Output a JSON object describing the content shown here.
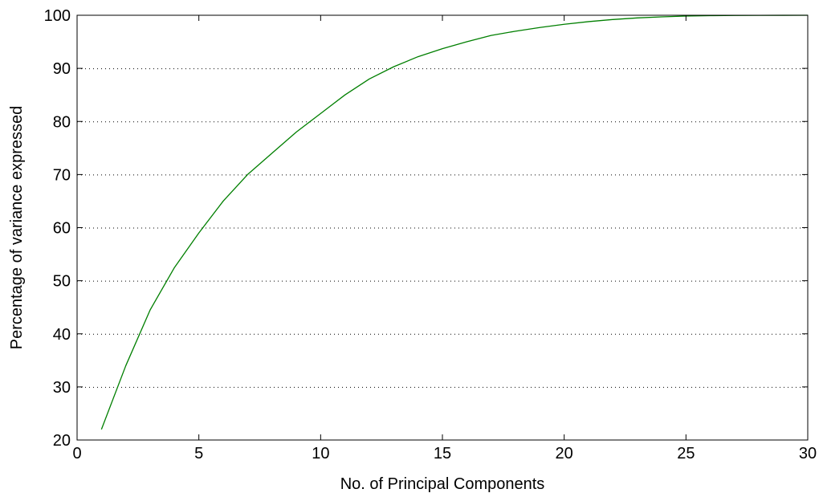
{
  "chart_data": {
    "type": "line",
    "title": "",
    "xlabel": "No. of Principal Components",
    "ylabel": "Percentage of variance expressed",
    "xlim": [
      0,
      30
    ],
    "ylim": [
      20,
      100
    ],
    "xticks": [
      0,
      5,
      10,
      15,
      20,
      25,
      30
    ],
    "yticks": [
      20,
      30,
      40,
      50,
      60,
      70,
      80,
      90,
      100
    ],
    "grid": {
      "x": false,
      "y": true,
      "style": "dotted"
    },
    "legend": "none",
    "series": [
      {
        "color": "#007f00",
        "x": [
          1,
          2,
          3,
          4,
          5,
          6,
          7,
          8,
          9,
          10,
          11,
          12,
          13,
          14,
          15,
          16,
          17,
          18,
          19,
          20,
          21,
          22,
          23,
          24,
          25,
          26,
          27,
          28,
          29,
          30
        ],
        "y": [
          22,
          34,
          44.5,
          52.5,
          59,
          65,
          70,
          74,
          78,
          81.5,
          85,
          88,
          90.3,
          92.2,
          93.7,
          95,
          96.2,
          97,
          97.7,
          98.3,
          98.8,
          99.2,
          99.5,
          99.7,
          99.85,
          99.92,
          99.96,
          99.98,
          99.99,
          100
        ]
      }
    ]
  }
}
